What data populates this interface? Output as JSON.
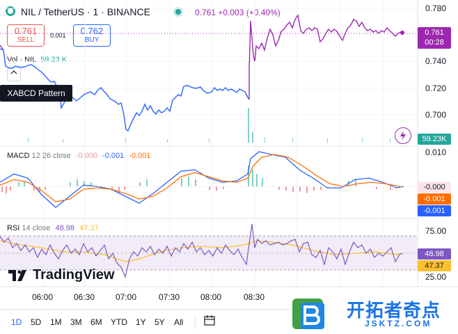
{
  "header": {
    "pair": "NIL / TetherUS · 1 · BINANCE",
    "price": "0.761 +0.003 (+0.40%)"
  },
  "trade": {
    "sell_price": "0.761",
    "sell_label": "SELL",
    "spread": "0.001",
    "buy_price": "0.762",
    "buy_label": "BUY"
  },
  "volume": {
    "label": "Vol · NIL",
    "value": "59.23 K"
  },
  "tooltip": "XABCD Pattern",
  "price_axis": {
    "ticks": [
      "0.780",
      "0.760",
      "0.740",
      "0.720",
      "0.700"
    ],
    "last_price": "0.761",
    "countdown": "00:28",
    "volume_tag": "59.23K"
  },
  "macd": {
    "label": "MACD",
    "params": "12 26 close",
    "v1": "-0.000",
    "v2": "-0.001",
    "v3": "-0.001",
    "axis": [
      "0.010",
      "-0.000",
      "-0.001",
      "-0.001"
    ]
  },
  "rsi": {
    "label": "RSI",
    "params": "14 close",
    "v1": "48.98",
    "v2": "47.37",
    "axis": [
      "75.00",
      "48.98",
      "47.37",
      "25.00"
    ]
  },
  "time_axis": [
    "06:00",
    "06:30",
    "07:00",
    "07:30",
    "08:00",
    "08:30"
  ],
  "ranges": [
    "1D",
    "5D",
    "1M",
    "3M",
    "6M",
    "YTD",
    "1Y",
    "5Y",
    "All"
  ],
  "brand": "TradingView",
  "watermark": {
    "name": "开拓者奇点",
    "url": "JSKTZ.COM"
  },
  "colors": {
    "up": "#26a69a",
    "down": "#ef5350",
    "blue": "#2962ff",
    "purple": "#9c27b0",
    "orange": "#ff6d00",
    "rsi_avg": "#fbc02d"
  }
}
